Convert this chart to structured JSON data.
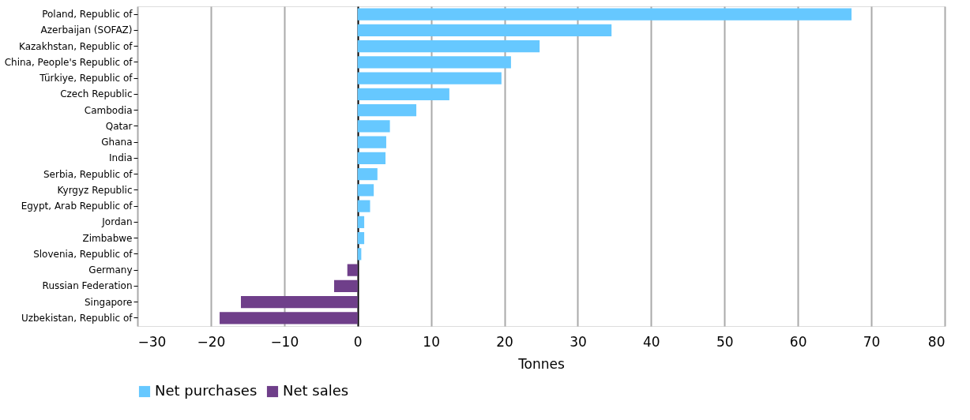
{
  "chart_data": {
    "type": "bar",
    "orientation": "horizontal",
    "xlabel": "Tonnes",
    "categories": [
      "Poland, Republic of",
      "Azerbaijan (SOFAZ)",
      "Kazakhstan, Republic of",
      "China, People's Republic of",
      "Türkiye, Republic of",
      "Czech Republic",
      "Cambodia",
      "Qatar",
      "Ghana",
      "India",
      "Serbia, Republic of",
      "Kyrgyz Republic",
      "Egypt, Arab Republic of",
      "Jordan",
      "Zimbabwe",
      "Slovenia, Republic of",
      "Germany",
      "Russian Federation",
      "Singapore",
      "Uzbekistan, Republic of"
    ],
    "series": [
      {
        "name": "Net purchases",
        "color": "#66c8ff",
        "values": [
          67.3,
          34.6,
          24.8,
          20.9,
          19.6,
          12.5,
          8.0,
          4.4,
          3.9,
          3.8,
          2.7,
          2.2,
          1.7,
          0.9,
          0.9,
          0.5,
          null,
          null,
          null,
          null
        ]
      },
      {
        "name": "Net sales",
        "color": "#6f3f8a",
        "values": [
          null,
          null,
          null,
          null,
          null,
          null,
          null,
          null,
          null,
          null,
          null,
          null,
          null,
          null,
          null,
          null,
          -1.4,
          -3.2,
          -15.9,
          -18.8
        ]
      }
    ],
    "xlim": [
      -30,
      80
    ],
    "xticks": [
      -30,
      -20,
      -10,
      0,
      10,
      20,
      30,
      40,
      50,
      60,
      70,
      80
    ],
    "grid": "x",
    "legend": "bottom"
  }
}
